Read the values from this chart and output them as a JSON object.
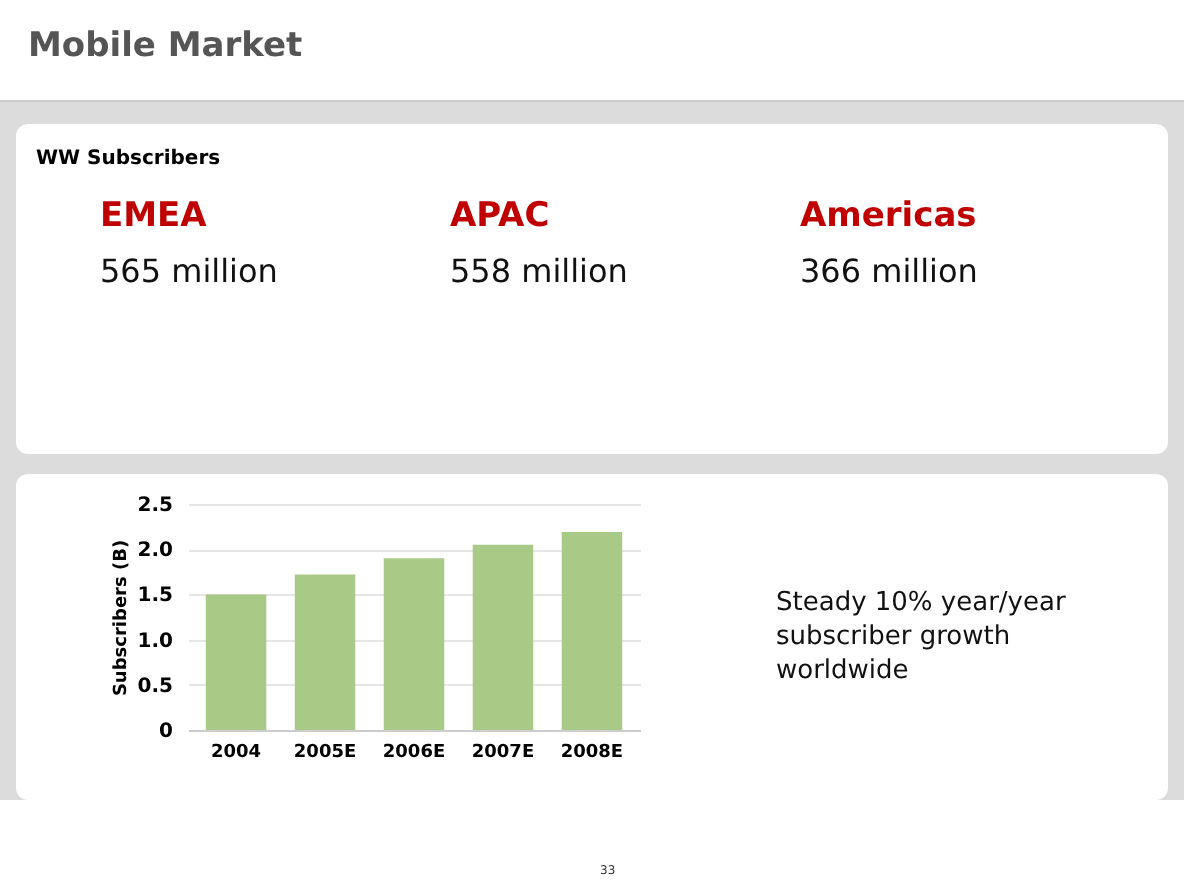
{
  "chart_data": [
    {
      "type": "other",
      "title": "Mobile Market",
      "subtitle": "WW Subscribers",
      "annotations": [
        "EMEA",
        "565 million",
        "APAC",
        "558 million",
        "Americas",
        "366 million"
      ]
    },
    {
      "type": "bar",
      "ylabel": "Subscribers (B)",
      "categories": [
        "2004",
        "2005E",
        "2006E",
        "2007E",
        "2008E"
      ],
      "values": [
        1.5,
        1.72,
        1.9,
        2.05,
        2.19
      ],
      "color": "#a9c987",
      "ylim": [
        0,
        2.5
      ],
      "yticks": [
        0,
        {
          "value": 0.5,
          "label": "0.5"
        },
        {
          "value": 1,
          "label": "1.0"
        },
        {
          "value": 1.5,
          "label": "1.5"
        },
        {
          "value": 2,
          "label": "2.0"
        },
        {
          "value": 2.5,
          "label": "2.5"
        }
      ],
      "grid": "y",
      "annotations": [
        "Steady 10% year/year subscriber growth worldwide",
        "33"
      ]
    }
  ]
}
